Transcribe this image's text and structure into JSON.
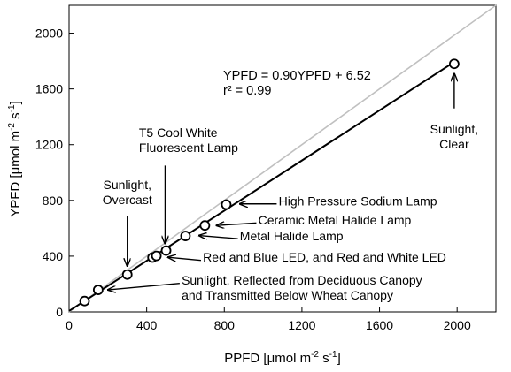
{
  "chart_data": {
    "type": "scatter",
    "title": "",
    "xlabel": {
      "pre": "PPFD [",
      "mu": "μ",
      "mid": "mol m",
      "sup1": "-2",
      "mid2": " s",
      "sup2": "-1",
      "post": "]"
    },
    "ylabel": {
      "pre": "YPFD [",
      "mu": "μ",
      "mid": "mol m",
      "sup1": "-2",
      "mid2": " s",
      "sup2": "-1",
      "post": "]"
    },
    "xlim": [
      0,
      2200
    ],
    "ylim": [
      0,
      2200
    ],
    "xticks": [
      0,
      400,
      800,
      1200,
      1600,
      2000
    ],
    "yticks": [
      0,
      400,
      800,
      1200,
      1600,
      2000
    ],
    "xtick_labels": [
      "0",
      "400",
      "800",
      "1200",
      "1600",
      "2000"
    ],
    "ytick_labels": [
      "0",
      "400",
      "800",
      "1200",
      "1600",
      "2000"
    ],
    "grid": false,
    "points": [
      {
        "x": 80,
        "y": 78
      },
      {
        "x": 150,
        "y": 158
      },
      {
        "x": 300,
        "y": 268
      },
      {
        "x": 430,
        "y": 390
      },
      {
        "x": 450,
        "y": 402
      },
      {
        "x": 500,
        "y": 440
      },
      {
        "x": 600,
        "y": 545
      },
      {
        "x": 700,
        "y": 620
      },
      {
        "x": 810,
        "y": 770
      },
      {
        "x": 1985,
        "y": 1780
      }
    ],
    "regression": {
      "slope": 0.9,
      "intercept": 6.52,
      "x_range": [
        0,
        1985
      ]
    },
    "identity_line": {
      "x_range": [
        0,
        2200
      ],
      "color": "#c0c0c0"
    },
    "equation_lines": [
      "YPFD = 0.90YPFD + 6.52",
      "r² = 0.99"
    ],
    "annotations": [
      {
        "id": "sunlight-clear",
        "lines": [
          "Sunlight,",
          "Clear"
        ],
        "anchor": "middle",
        "tx": 1985,
        "ty": 1280,
        "arrow_from": [
          1985,
          1460
        ],
        "arrow_to": [
          1985,
          1710
        ]
      },
      {
        "id": "t5-cool-white",
        "lines": [
          "T5 Cool White",
          "Fluorescent Lamp"
        ],
        "anchor": "start",
        "tx": 360,
        "ty": 1255,
        "arrow_from": [
          495,
          1050
        ],
        "arrow_to": [
          495,
          490
        ]
      },
      {
        "id": "sunlight-overcast",
        "lines": [
          "Sunlight,",
          "Overcast"
        ],
        "anchor": "middle",
        "tx": 300,
        "ty": 880,
        "arrow_from": [
          300,
          690
        ],
        "arrow_to": [
          300,
          330
        ]
      },
      {
        "id": "hps-lamp",
        "lines": [
          "High Pressure Sodium Lamp"
        ],
        "anchor": "start",
        "tx": 1080,
        "ty": 765,
        "arrow_from": [
          1070,
          775
        ],
        "arrow_to": [
          880,
          775
        ]
      },
      {
        "id": "cmh-lamp",
        "lines": [
          "Ceramic Metal Halide Lamp"
        ],
        "anchor": "start",
        "tx": 975,
        "ty": 628,
        "arrow_from": [
          965,
          638
        ],
        "arrow_to": [
          760,
          620
        ]
      },
      {
        "id": "mh-lamp",
        "lines": [
          "Metal Halide Lamp"
        ],
        "anchor": "start",
        "tx": 880,
        "ty": 515,
        "arrow_from": [
          870,
          525
        ],
        "arrow_to": [
          670,
          548
        ]
      },
      {
        "id": "led",
        "lines": [
          "Red and Blue LED, and Red and White LED"
        ],
        "anchor": "start",
        "tx": 690,
        "ty": 360,
        "arrow_from": [
          680,
          370
        ],
        "arrow_to": [
          510,
          392
        ]
      },
      {
        "id": "reflected-transmitted",
        "lines": [
          "Sunlight, Reflected from Deciduous Canopy",
          "and Transmitted Below Wheat Canopy"
        ],
        "anchor": "start",
        "tx": 580,
        "ty": 195,
        "arrow_from": [
          570,
          205
        ],
        "arrow_to": [
          200,
          158
        ]
      }
    ]
  }
}
